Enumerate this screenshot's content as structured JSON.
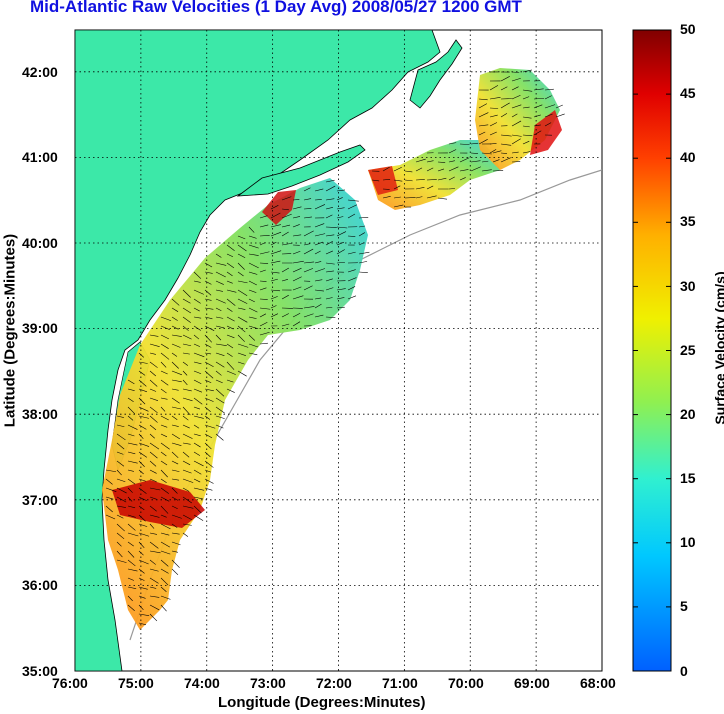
{
  "title": "Mid-Atlantic Raw Velocities (1 Day Avg) 2008/05/27 1200 GMT",
  "map": {
    "xlabel": "Longitude (Degrees:Minutes)",
    "ylabel": "Latitude (Degrees:Minutes)",
    "x_ticks": [
      "76:00",
      "75:00",
      "74:00",
      "73:00",
      "72:00",
      "71:00",
      "70:00",
      "69:00",
      "68:00"
    ],
    "y_ticks": [
      "35:00",
      "36:00",
      "37:00",
      "38:00",
      "39:00",
      "40:00",
      "41:00",
      "42:00"
    ],
    "land_color": "#3ce8a8",
    "grid": "dotted"
  },
  "colorbar": {
    "label": "Surface Velocity (cm/s)",
    "ticks": [
      "50",
      "45",
      "40",
      "35",
      "30",
      "25",
      "20",
      "15",
      "10",
      "5",
      "0"
    ],
    "min": 0,
    "max": 50
  }
}
